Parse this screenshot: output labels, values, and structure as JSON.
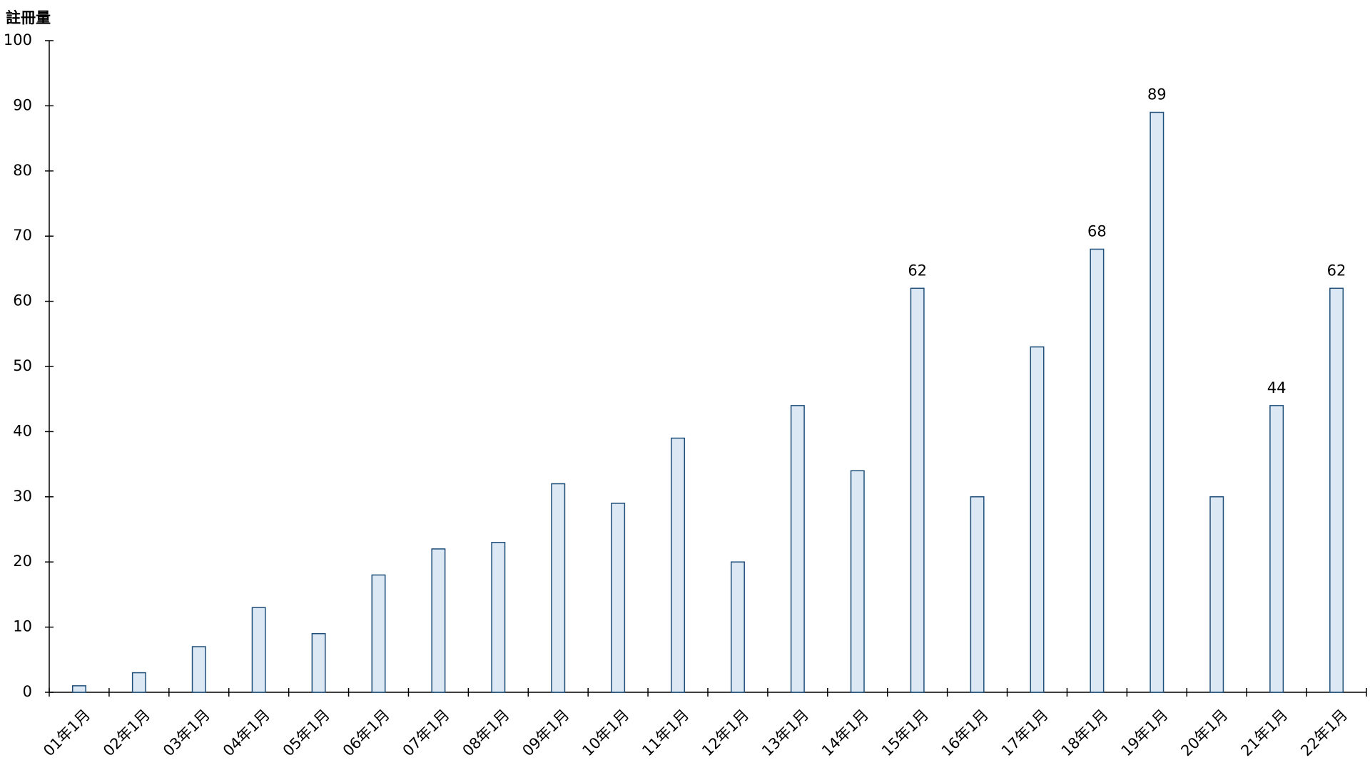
{
  "chart_data": {
    "type": "bar",
    "y_label": "註冊量",
    "categories": [
      "01年1月",
      "02年1月",
      "03年1月",
      "04年1月",
      "05年1月",
      "06年1月",
      "07年1月",
      "08年1月",
      "09年1月",
      "10年1月",
      "11年1月",
      "12年1月",
      "13年1月",
      "14年1月",
      "15年1月",
      "16年1月",
      "17年1月",
      "18年1月",
      "19年1月",
      "20年1月",
      "21年1月",
      "22年1月"
    ],
    "values": [
      1,
      3,
      7,
      13,
      9,
      18,
      22,
      23,
      32,
      29,
      39,
      20,
      44,
      34,
      62,
      30,
      53,
      68,
      89,
      30,
      44,
      62
    ],
    "value_labels": [
      null,
      null,
      null,
      null,
      null,
      null,
      null,
      null,
      null,
      null,
      null,
      null,
      null,
      null,
      "62",
      null,
      null,
      "68",
      "89",
      null,
      "44",
      "62"
    ],
    "color": "#dce9f5",
    "edge_color": "#1f4e79",
    "ylim": [
      0,
      100
    ],
    "yticks": [
      0,
      10,
      20,
      30,
      40,
      50,
      60,
      70,
      80,
      90,
      100
    ],
    "grid": false
  }
}
